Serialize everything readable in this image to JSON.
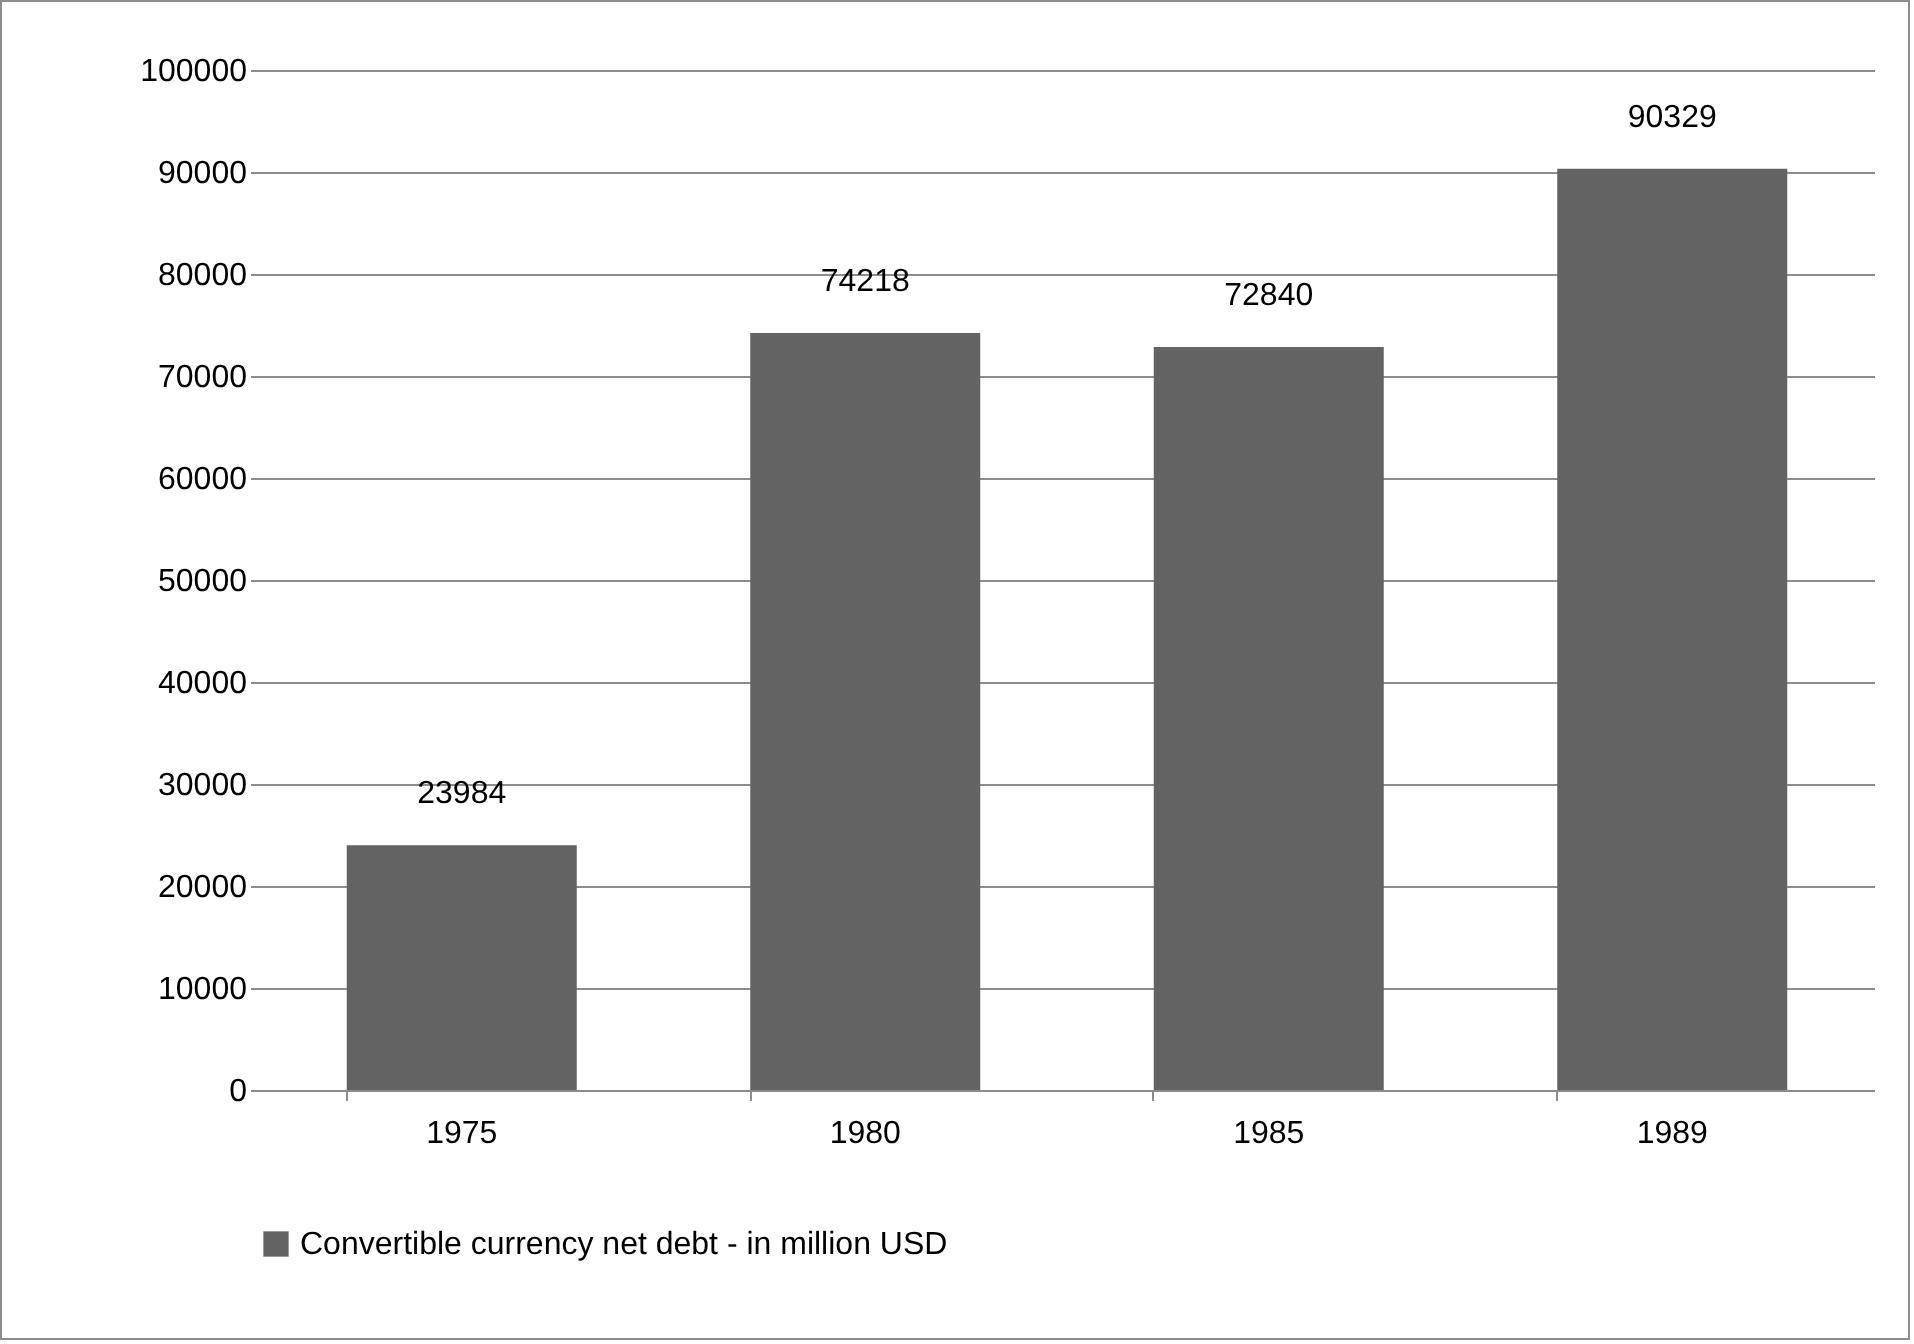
{
  "chart_data": {
    "type": "bar",
    "categories": [
      "1975",
      "1980",
      "1985",
      "1989"
    ],
    "series": [
      {
        "name": "Convertible currency net debt - in million USD",
        "color": "#636363",
        "values": [
          23984,
          74218,
          72840,
          90329
        ]
      }
    ],
    "ylim": [
      0,
      100000
    ],
    "yticks": [
      0,
      10000,
      20000,
      30000,
      40000,
      50000,
      60000,
      70000,
      80000,
      90000,
      100000
    ],
    "grid": "y",
    "legend": "bottom",
    "data_labels": true
  }
}
